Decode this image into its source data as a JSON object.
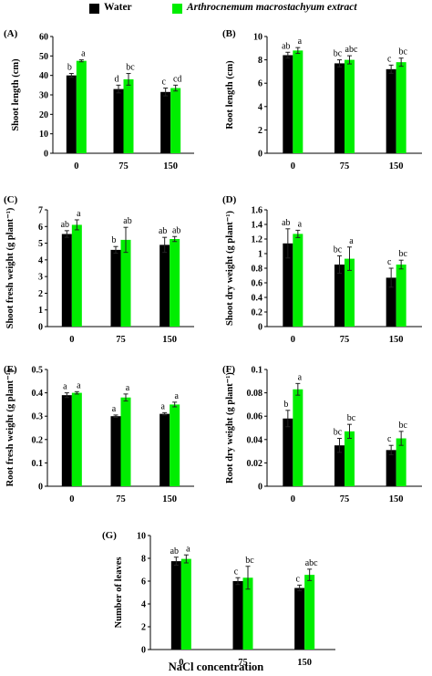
{
  "legend": {
    "water": {
      "label": "Water",
      "color": "#000000"
    },
    "extract": {
      "label": "Arthrocnemum macrostachyum extract",
      "color": "#00ee00"
    }
  },
  "x_axis_label": "NaCl concentration",
  "chart_data": [
    {
      "panel": "(A)",
      "type": "bar",
      "ylabel": "Shoot length (cm)",
      "categories": [
        "0",
        "75",
        "150"
      ],
      "ylim": [
        0,
        60
      ],
      "yticks": [
        "0",
        "10",
        "20",
        "30",
        "40",
        "50",
        "60"
      ],
      "series": [
        {
          "name": "Water",
          "values": [
            40,
            33,
            31.5
          ],
          "errors": [
            1,
            2,
            2
          ],
          "letters": [
            "b",
            "d",
            "c"
          ]
        },
        {
          "name": "Arthrocnemum macrostachyum extract",
          "values": [
            47.5,
            38,
            33.5
          ],
          "errors": [
            0.5,
            3,
            1.5
          ],
          "letters": [
            "a",
            "bc",
            "cd"
          ]
        }
      ]
    },
    {
      "panel": "(B)",
      "type": "bar",
      "ylabel": "Root length (cm)",
      "categories": [
        "0",
        "75",
        "150"
      ],
      "ylim": [
        0,
        10
      ],
      "yticks": [
        "0",
        "2",
        "4",
        "6",
        "8",
        "10"
      ],
      "series": [
        {
          "name": "Water",
          "values": [
            8.4,
            7.7,
            7.2
          ],
          "errors": [
            0.25,
            0.3,
            0.35
          ],
          "letters": [
            "ab",
            "bc",
            "c"
          ]
        },
        {
          "name": "Arthrocnemum macrostachyum extract",
          "values": [
            8.8,
            8.0,
            7.8
          ],
          "errors": [
            0.25,
            0.35,
            0.35
          ],
          "letters": [
            "a",
            "abc",
            "bc"
          ]
        }
      ]
    },
    {
      "panel": "(C)",
      "type": "bar",
      "ylabel": "Shoot fresh weight (g plant⁻¹)",
      "categories": [
        "0",
        "75",
        "150"
      ],
      "ylim": [
        0,
        7
      ],
      "yticks": [
        "0",
        "1",
        "2",
        "3",
        "4",
        "5",
        "6",
        "7"
      ],
      "series": [
        {
          "name": "Water",
          "values": [
            5.55,
            4.6,
            4.9
          ],
          "errors": [
            0.2,
            0.2,
            0.45
          ],
          "letters": [
            "ab",
            "b",
            "ab"
          ]
        },
        {
          "name": "Arthrocnemum macrostachyum extract",
          "values": [
            6.1,
            5.2,
            5.25
          ],
          "errors": [
            0.3,
            0.75,
            0.15
          ],
          "letters": [
            "a",
            "ab",
            "ab"
          ]
        }
      ]
    },
    {
      "panel": "(D)",
      "type": "bar",
      "ylabel": "Shoot dry weight (g plant⁻¹)",
      "categories": [
        "0",
        "75",
        "150"
      ],
      "ylim": [
        0,
        1.6
      ],
      "yticks": [
        "0",
        "0.2",
        "0.4",
        "0.6",
        "0.8",
        "1",
        "1.2",
        "1.4",
        "1.6"
      ],
      "series": [
        {
          "name": "Water",
          "values": [
            1.14,
            0.85,
            0.67
          ],
          "errors": [
            0.2,
            0.12,
            0.13
          ],
          "letters": [
            "ab",
            "bc",
            "c"
          ]
        },
        {
          "name": "Arthrocnemum macrostachyum extract",
          "values": [
            1.27,
            0.93,
            0.85
          ],
          "errors": [
            0.05,
            0.16,
            0.06
          ],
          "letters": [
            "a",
            "a",
            "bc"
          ]
        }
      ]
    },
    {
      "panel": "(E)",
      "type": "bar",
      "ylabel": "Root fresh weight (g plant⁻¹)",
      "categories": [
        "0",
        "75",
        "150"
      ],
      "ylim": [
        0,
        0.5
      ],
      "yticks": [
        "0",
        "0.1",
        "0.2",
        "0.3",
        "0.4",
        "0.5"
      ],
      "series": [
        {
          "name": "Water",
          "values": [
            0.39,
            0.3,
            0.31
          ],
          "errors": [
            0.01,
            0.005,
            0.005
          ],
          "letters": [
            "a",
            "a",
            "a"
          ]
        },
        {
          "name": "Arthrocnemum macrostachyum extract",
          "values": [
            0.4,
            0.38,
            0.35
          ],
          "errors": [
            0.005,
            0.015,
            0.01
          ],
          "letters": [
            "a",
            "a",
            "a"
          ]
        }
      ]
    },
    {
      "panel": "(F)",
      "type": "bar",
      "ylabel": "Root dry weight (g plant⁻¹)",
      "categories": [
        "0",
        "75",
        "150"
      ],
      "ylim": [
        0,
        0.1
      ],
      "yticks": [
        "0",
        "0.02",
        "0.04",
        "0.06",
        "0.08",
        "0.1"
      ],
      "series": [
        {
          "name": "Water",
          "values": [
            0.058,
            0.035,
            0.031
          ],
          "errors": [
            0.007,
            0.006,
            0.004
          ],
          "letters": [
            "b",
            "bc",
            "c"
          ]
        },
        {
          "name": "Arthrocnemum macrostachyum extract",
          "values": [
            0.083,
            0.047,
            0.041
          ],
          "errors": [
            0.005,
            0.006,
            0.006
          ],
          "letters": [
            "a",
            "bc",
            "bc"
          ]
        }
      ]
    },
    {
      "panel": "(G)",
      "type": "bar",
      "ylabel": "Number of leaves",
      "categories": [
        "0",
        "75",
        "150"
      ],
      "ylim": [
        0,
        10
      ],
      "yticks": [
        "0",
        "2",
        "4",
        "6",
        "8",
        "10"
      ],
      "series": [
        {
          "name": "Water",
          "values": [
            7.75,
            6.0,
            5.4
          ],
          "errors": [
            0.35,
            0.3,
            0.25
          ],
          "letters": [
            "ab",
            "c",
            "c"
          ]
        },
        {
          "name": "Arthrocnemum macrostachyum extract",
          "values": [
            7.95,
            6.3,
            6.55
          ],
          "errors": [
            0.35,
            1.0,
            0.5
          ],
          "letters": [
            "a",
            "bc",
            "abc"
          ]
        }
      ]
    }
  ]
}
